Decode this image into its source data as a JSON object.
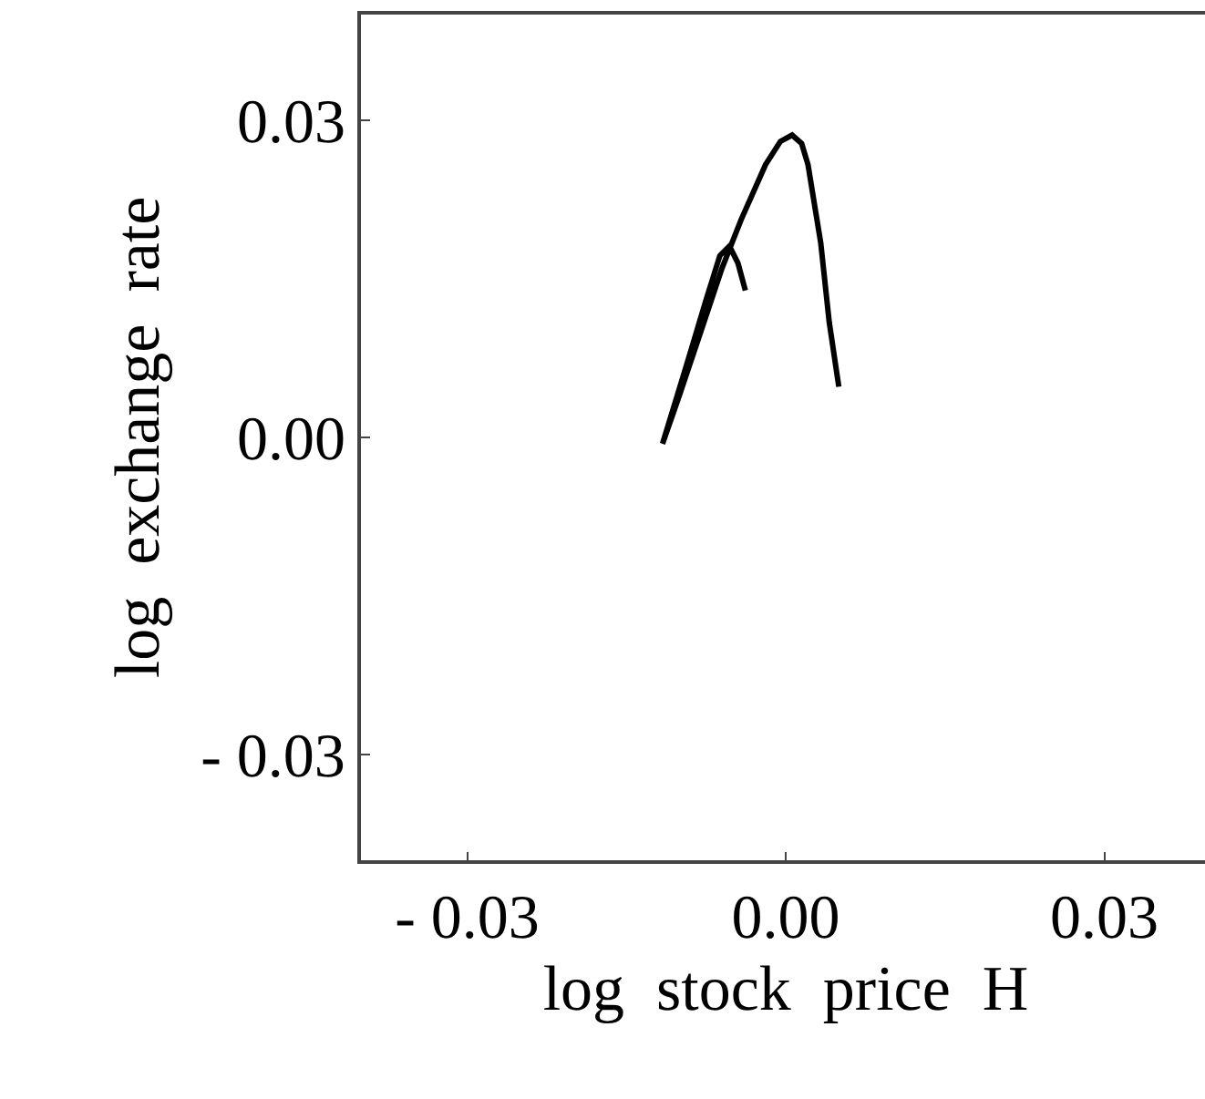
{
  "chart_data": {
    "type": "line",
    "xlabel": "log  stock  price  H",
    "ylabel": "log  exchange  rate",
    "xlim": [
      -0.04,
      0.04
    ],
    "ylim": [
      -0.04,
      0.04
    ],
    "xticks": [
      {
        "value": -0.03,
        "label": "- 0.03"
      },
      {
        "value": 0,
        "label": "0.00"
      },
      {
        "value": 0.03,
        "label": "0.03"
      }
    ],
    "yticks": [
      {
        "value": -0.03,
        "label": "- 0.03"
      },
      {
        "value": 0,
        "label": "0.00"
      },
      {
        "value": 0.03,
        "label": "0.03"
      }
    ],
    "grid": false,
    "marker": "none",
    "line_style": "solid",
    "series": [
      {
        "color": "#000000",
        "x": [
          -0.0038,
          -0.0045,
          -0.0053,
          -0.0062,
          -0.0075,
          -0.0095,
          -0.0116,
          -0.01,
          -0.0083,
          -0.006,
          -0.0042,
          -0.0019,
          -0.0005,
          0.0006,
          0.0015,
          0.0021,
          0.0033,
          0.0041,
          0.005
        ],
        "values": [
          0.0139,
          0.0165,
          0.0181,
          0.0172,
          0.013,
          0.0063,
          -0.0006,
          0.004,
          0.0091,
          0.016,
          0.0206,
          0.0258,
          0.028,
          0.0286,
          0.0278,
          0.0258,
          0.0184,
          0.0109,
          0.0048
        ]
      }
    ]
  }
}
